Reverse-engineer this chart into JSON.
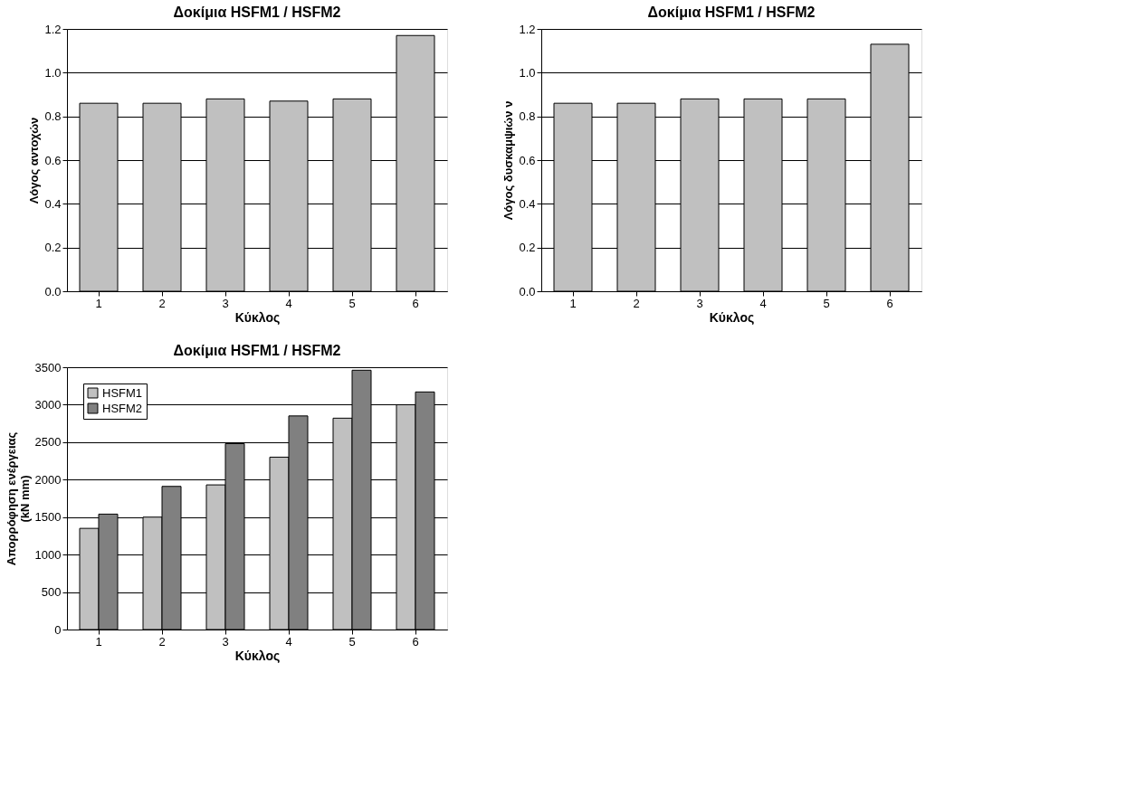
{
  "chart_data": [
    {
      "type": "bar",
      "title": "Δοκίμια  HSFM1 / HSFM2",
      "xlabel": "Κύκλος",
      "ylabel": "Λόγος αντοχών",
      "categories": [
        "1",
        "2",
        "3",
        "4",
        "5",
        "6"
      ],
      "values": [
        0.86,
        0.86,
        0.88,
        0.87,
        0.88,
        1.17
      ],
      "color": "#c0c0c0",
      "ylim": [
        0,
        1.2
      ],
      "yticks": [
        {
          "value": 0,
          "label": "0.0"
        },
        {
          "value": 0.2,
          "label": "0.2"
        },
        {
          "value": 0.4,
          "label": "0.4"
        },
        {
          "value": 0.6,
          "label": "0.6"
        },
        {
          "value": 0.8,
          "label": "0.8"
        },
        {
          "value": 1.0,
          "label": "1.0"
        },
        {
          "value": 1.2,
          "label": "1.2"
        }
      ],
      "grid": "y"
    },
    {
      "type": "bar",
      "title": "Δοκίμια HSFM1 / HSFM2",
      "xlabel": "Κύκλος",
      "ylabel": "Λόγος δυσκαμψιών ν",
      "categories": [
        "1",
        "2",
        "3",
        "4",
        "5",
        "6"
      ],
      "values": [
        0.86,
        0.86,
        0.88,
        0.88,
        0.88,
        1.13
      ],
      "color": "#c0c0c0",
      "ylim": [
        0,
        1.2
      ],
      "yticks": [
        {
          "value": 0,
          "label": "0.0"
        },
        {
          "value": 0.2,
          "label": "0.2"
        },
        {
          "value": 0.4,
          "label": "0.4"
        },
        {
          "value": 0.6,
          "label": "0.6"
        },
        {
          "value": 0.8,
          "label": "0.8"
        },
        {
          "value": 1.0,
          "label": "1.0"
        },
        {
          "value": 1.2,
          "label": "1.2"
        }
      ],
      "grid": "y"
    },
    {
      "type": "bar",
      "title": "Δοκίμια HSFM1 / HSFM2",
      "xlabel": "Κύκλος",
      "ylabel": "Απορρόφηση ενέργειας\n(kN mm)",
      "categories": [
        "1",
        "2",
        "3",
        "4",
        "5",
        "6"
      ],
      "series": [
        {
          "name": "HSFM1",
          "color": "#c0c0c0",
          "values": [
            1350,
            1500,
            1930,
            2300,
            2820,
            3000
          ]
        },
        {
          "name": "HSFM2",
          "color": "#808080",
          "values": [
            1540,
            1910,
            2480,
            2850,
            3460,
            3170
          ]
        }
      ],
      "ylim": [
        0,
        3500
      ],
      "yticks": [
        0,
        500,
        1000,
        1500,
        2000,
        2500,
        3000,
        3500
      ],
      "grid": "y",
      "legend": "top left"
    }
  ]
}
